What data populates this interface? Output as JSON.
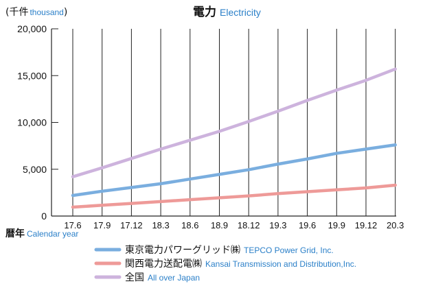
{
  "chart_data": {
    "type": "line",
    "title": "電力",
    "title_en": "Electricity",
    "ylabel": "(千件",
    "ylabel_en": "thousand",
    "ylabel_close": ")",
    "xlabel": "暦年",
    "xlabel_en": "Calendar year",
    "x": [
      "17.6",
      "17.9",
      "17.12",
      "18.3",
      "18.6",
      "18.9",
      "18.12",
      "19.3",
      "19.6",
      "19.9",
      "19.12",
      "20.3"
    ],
    "ylim": [
      0,
      20000
    ],
    "yticks": [
      0,
      5000,
      10000,
      15000,
      20000
    ],
    "ytick_labels": [
      "0",
      "5,000",
      "10,000",
      "15,000",
      "20,000"
    ],
    "grid": "vertical",
    "legend_position": "bottom",
    "series": [
      {
        "name": "東京電力パワーグリッド㈱",
        "name_en": "TEPCO Power Grid, Inc.",
        "color": "#7aaedf",
        "values": [
          2200,
          2650,
          3050,
          3450,
          3950,
          4450,
          4950,
          5550,
          6100,
          6700,
          7150,
          7600
        ]
      },
      {
        "name": "関西電力送配電㈱",
        "name_en": "Kansai Transmission and Distribution,Inc.",
        "color": "#ee9a98",
        "values": [
          950,
          1150,
          1350,
          1550,
          1750,
          1950,
          2150,
          2400,
          2600,
          2800,
          3000,
          3300
        ]
      },
      {
        "name": "全国",
        "name_en": "All over Japan",
        "color": "#cdb3dd",
        "values": [
          4200,
          5150,
          6150,
          7150,
          8100,
          9050,
          10100,
          11200,
          12350,
          13450,
          14500,
          15700
        ]
      }
    ]
  }
}
